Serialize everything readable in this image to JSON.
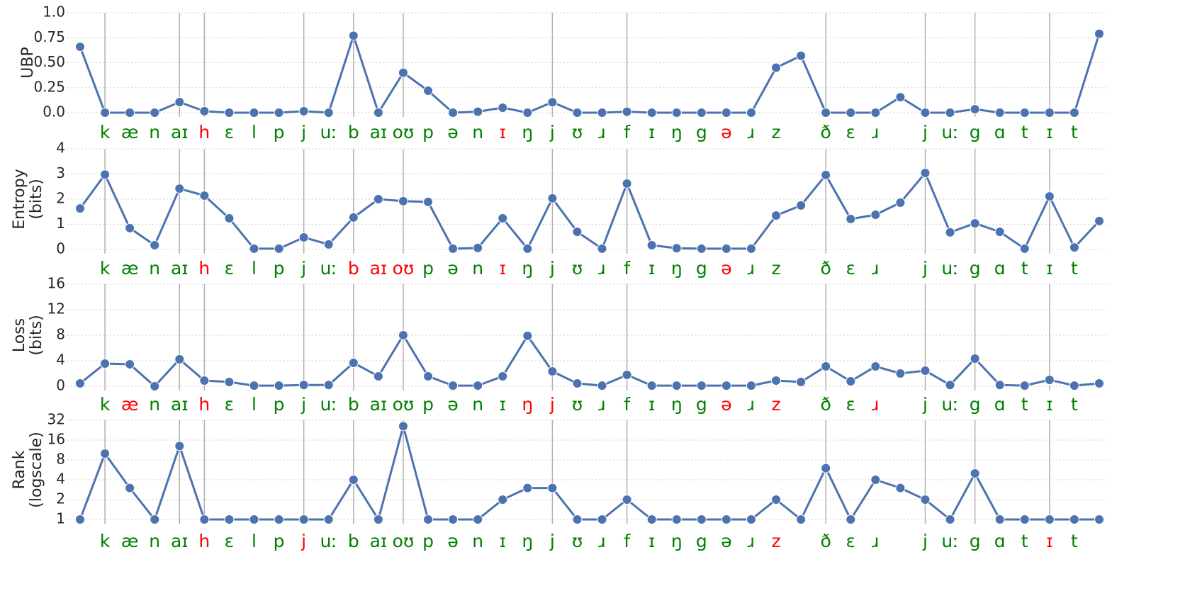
{
  "chart_data": [
    {
      "type": "line",
      "ylabel": [
        "UBP"
      ],
      "color": "#4c72b0",
      "label_color": "#008000",
      "highlight_color": "#ff0000",
      "grid": true,
      "log": false,
      "categories": [
        null,
        "k",
        "æ",
        "n",
        "aɪ",
        "h",
        "ɛ",
        "l",
        "p",
        "j",
        "uː",
        "b",
        "aɪ",
        "oʊ",
        "p",
        "ə",
        "n",
        "ɪ",
        "ŋ",
        "j",
        "ʊ",
        "ɹ",
        "f",
        "ɪ",
        "ŋ",
        "g",
        "ə",
        "ɹ",
        "z",
        null,
        "ð",
        "ɛ",
        "ɹ",
        null,
        "j",
        "uː",
        "g",
        "ɑ",
        "t",
        "ɪ",
        "t",
        null
      ],
      "values": [
        0.66,
        0,
        0,
        0,
        0.106,
        0.015,
        0,
        0,
        0,
        0.015,
        0,
        0.77,
        0,
        0.4,
        0.22,
        0,
        0.01,
        0.05,
        0,
        0.105,
        0,
        0,
        0.01,
        0,
        0,
        0,
        0,
        0,
        0.45,
        0.57,
        0,
        0,
        0,
        0.155,
        0,
        0,
        0.035,
        0,
        0,
        0,
        0,
        0.79
      ],
      "highlight": [
        5,
        17,
        26
      ],
      "boundaries": [
        1,
        4,
        5,
        9,
        11,
        13,
        19,
        22,
        30,
        34,
        36,
        39
      ],
      "ylim": [
        0,
        1
      ],
      "yticks": [
        {
          "value": 0,
          "label": "0.0"
        },
        0.25,
        {
          "value": 0.5,
          "label": "0.50"
        },
        0.75,
        {
          "value": 1,
          "label": "1.0"
        }
      ]
    },
    {
      "type": "line",
      "ylabel": [
        "Entropy",
        "(bits)"
      ],
      "color": "#4c72b0",
      "label_color": "#008000",
      "highlight_color": "#ff0000",
      "grid": true,
      "log": false,
      "categories": [
        null,
        "k",
        "æ",
        "n",
        "aɪ",
        "h",
        "ɛ",
        "l",
        "p",
        "j",
        "uː",
        "b",
        "aɪ",
        "oʊ",
        "p",
        "ə",
        "n",
        "ɪ",
        "ŋ",
        "j",
        "ʊ",
        "ɹ",
        "f",
        "ɪ",
        "ŋ",
        "g",
        "ə",
        "ɹ",
        "z",
        null,
        "ð",
        "ɛ",
        "ɹ",
        null,
        "j",
        "uː",
        "g",
        "ɑ",
        "t",
        "ɪ",
        "t",
        null
      ],
      "values": [
        1.63,
        2.98,
        0.85,
        0.17,
        2.42,
        2.14,
        1.24,
        0.03,
        0.03,
        0.48,
        0.2,
        1.27,
        2.0,
        1.92,
        1.89,
        0.03,
        0.06,
        1.24,
        0.03,
        2.03,
        0.7,
        0.03,
        2.62,
        0.17,
        0.05,
        0.03,
        0.03,
        0.03,
        1.35,
        1.75,
        2.96,
        1.21,
        1.38,
        1.86,
        3.04,
        0.68,
        1.04,
        0.7,
        0.03,
        2.11,
        0.08,
        1.13
      ],
      "highlight": [
        5,
        11,
        12,
        13,
        17,
        26
      ],
      "boundaries": [
        1,
        4,
        5,
        9,
        11,
        13,
        19,
        22,
        30,
        34,
        36,
        39
      ],
      "ylim": [
        0,
        4
      ],
      "yticks": [
        0,
        1,
        2,
        3,
        4
      ]
    },
    {
      "type": "line",
      "ylabel": [
        "Loss",
        "(bits)"
      ],
      "color": "#4c72b0",
      "label_color": "#008000",
      "highlight_color": "#ff0000",
      "grid": true,
      "log": false,
      "categories": [
        null,
        "k",
        "æ",
        "n",
        "aɪ",
        "h",
        "ɛ",
        "l",
        "p",
        "j",
        "uː",
        "b",
        "aɪ",
        "oʊ",
        "p",
        "ə",
        "n",
        "ɪ",
        "ŋ",
        "j",
        "ʊ",
        "ɹ",
        "f",
        "ɪ",
        "ŋ",
        "g",
        "ə",
        "ɹ",
        "z",
        null,
        "ð",
        "ɛ",
        "ɹ",
        null,
        "j",
        "uː",
        "g",
        "ɑ",
        "t",
        "ɪ",
        "t",
        null
      ],
      "values": [
        0.44,
        3.56,
        3.44,
        0,
        4.22,
        0.89,
        0.67,
        0.1,
        0.1,
        0.2,
        0.2,
        3.67,
        1.56,
        8.0,
        1.56,
        0.1,
        0.1,
        1.56,
        7.9,
        2.33,
        0.44,
        0.1,
        1.78,
        0.1,
        0.1,
        0.1,
        0.1,
        0.1,
        0.89,
        0.67,
        3.11,
        0.78,
        3.11,
        2.0,
        2.44,
        0.2,
        4.33,
        0.2,
        0.1,
        1.0,
        0.1,
        0.44
      ],
      "highlight": [
        2,
        5,
        18,
        19,
        26,
        28,
        32
      ],
      "boundaries": [
        1,
        4,
        5,
        9,
        11,
        13,
        19,
        22,
        30,
        34,
        36,
        39
      ],
      "ylim": [
        0,
        16
      ],
      "yticks": [
        0,
        4,
        8,
        12,
        16
      ]
    },
    {
      "type": "line",
      "ylabel": [
        "Rank",
        "(logscale)"
      ],
      "color": "#4c72b0",
      "label_color": "#008000",
      "highlight_color": "#ff0000",
      "grid": true,
      "log": true,
      "categories": [
        null,
        "k",
        "æ",
        "n",
        "aɪ",
        "h",
        "ɛ",
        "l",
        "p",
        "j",
        "uː",
        "b",
        "aɪ",
        "oʊ",
        "p",
        "ə",
        "n",
        "ɪ",
        "ŋ",
        "j",
        "ʊ",
        "ɹ",
        "f",
        "ɪ",
        "ŋ",
        "g",
        "ə",
        "ɹ",
        "z",
        null,
        "ð",
        "ɛ",
        "ɹ",
        null,
        "j",
        "uː",
        "g",
        "ɑ",
        "t",
        "ɪ",
        "t",
        null
      ],
      "values": [
        1,
        10,
        3,
        1,
        13,
        1,
        1,
        1,
        1,
        1,
        1,
        4,
        1,
        26,
        1,
        1,
        1,
        2,
        3,
        3,
        1,
        1,
        2,
        1,
        1,
        1,
        1,
        1,
        2,
        1,
        6,
        1,
        4,
        3,
        2,
        1,
        5,
        1,
        1,
        1,
        1,
        1
      ],
      "highlight": [
        5,
        9,
        28,
        39
      ],
      "boundaries": [
        1,
        4,
        5,
        9,
        11,
        13,
        19,
        22,
        30,
        34,
        36,
        39
      ],
      "ylim": [
        1,
        32
      ],
      "yticks": [
        1,
        2,
        4,
        8,
        16,
        32
      ]
    }
  ]
}
